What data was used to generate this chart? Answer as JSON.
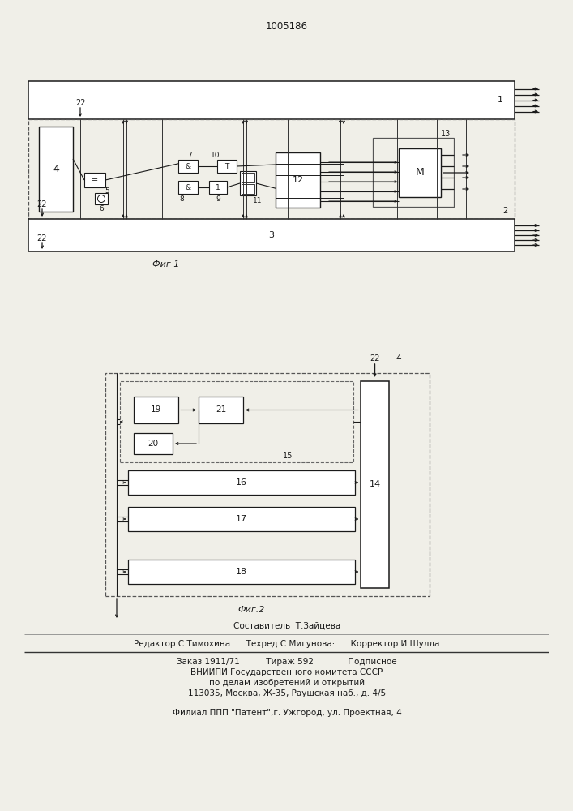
{
  "title": "1005186",
  "fig1_caption": "Фиг 1",
  "fig2_caption": "Фиг.2",
  "bg_color": "#f0efe8",
  "line_color": "#1a1a1a",
  "footer_lines": [
    "Составитель  Т.Зайцева",
    "Редактор С.Тимохина      Техред С.Мигунова·      Корректор И.Шулла",
    "Заказ 1911/71          Тираж 592             Подписное",
    "ВНИИПИ Государственного комитета СССР",
    "по делам изобретений и открытий",
    "113035, Москва, Ж-35, Раушская наб., д. 4/5",
    "Филиал ППП \"Патент\",г. Ужгород, ул. Проектная, 4"
  ]
}
